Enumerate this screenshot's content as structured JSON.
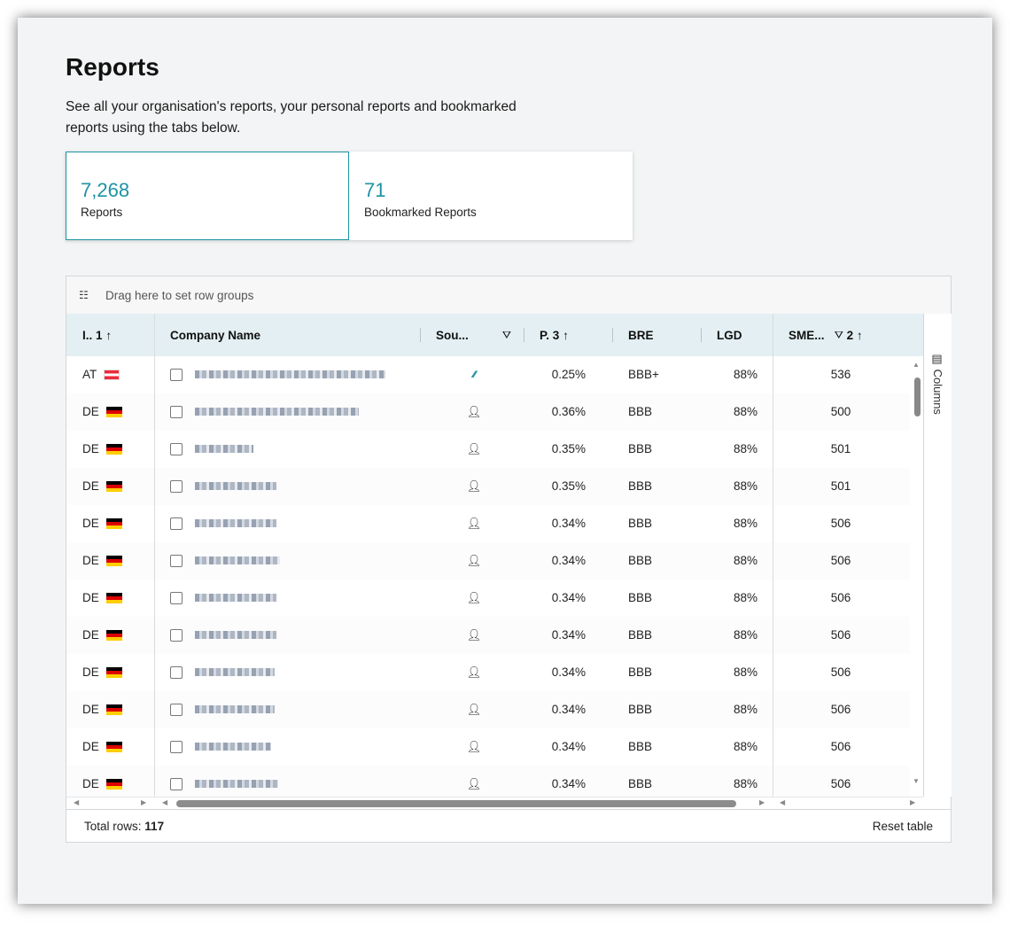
{
  "page": {
    "title": "Reports",
    "subtitle": "See all your organisation's reports, your personal reports and bookmarked reports using the tabs below."
  },
  "tabs": [
    {
      "count": "7,268",
      "label": "Reports",
      "active": true
    },
    {
      "count": "71",
      "label": "Bookmarked Reports",
      "active": false
    }
  ],
  "grid": {
    "group_placeholder": "Drag here to set row groups",
    "columns": {
      "country": {
        "label": "I..",
        "sort_order": "1",
        "sort_icon": "↑"
      },
      "company": {
        "label": "Company Name"
      },
      "source": {
        "label": "Sou...",
        "filter_icon": "⛛"
      },
      "pd": {
        "label": "P.",
        "sort_order": "3",
        "sort_icon": "↑"
      },
      "bre": {
        "label": "BRE"
      },
      "lgd": {
        "label": "LGD"
      },
      "sme": {
        "label": "SME...",
        "filter_icon": "⛛",
        "sort_order": "2",
        "sort_icon": "↑"
      }
    },
    "columns_panel_label": "Columns",
    "rows": [
      {
        "country": "AT",
        "flag": "at",
        "name_blur": 215,
        "source": "wave",
        "pd": "0.25%",
        "bre": "BBB+",
        "lgd": "88%",
        "sme": "536"
      },
      {
        "country": "DE",
        "flag": "de",
        "name_blur": 185,
        "source": "person",
        "pd": "0.36%",
        "bre": "BBB",
        "lgd": "88%",
        "sme": "500"
      },
      {
        "country": "DE",
        "flag": "de",
        "name_blur": 66,
        "source": "person",
        "pd": "0.35%",
        "bre": "BBB",
        "lgd": "88%",
        "sme": "501"
      },
      {
        "country": "DE",
        "flag": "de",
        "name_blur": 92,
        "source": "person",
        "pd": "0.35%",
        "bre": "BBB",
        "lgd": "88%",
        "sme": "501"
      },
      {
        "country": "DE",
        "flag": "de",
        "name_blur": 92,
        "source": "person",
        "pd": "0.34%",
        "bre": "BBB",
        "lgd": "88%",
        "sme": "506"
      },
      {
        "country": "DE",
        "flag": "de",
        "name_blur": 96,
        "source": "person",
        "pd": "0.34%",
        "bre": "BBB",
        "lgd": "88%",
        "sme": "506"
      },
      {
        "country": "DE",
        "flag": "de",
        "name_blur": 92,
        "source": "person",
        "pd": "0.34%",
        "bre": "BBB",
        "lgd": "88%",
        "sme": "506"
      },
      {
        "country": "DE",
        "flag": "de",
        "name_blur": 92,
        "source": "person",
        "pd": "0.34%",
        "bre": "BBB",
        "lgd": "88%",
        "sme": "506"
      },
      {
        "country": "DE",
        "flag": "de",
        "name_blur": 90,
        "source": "person",
        "pd": "0.34%",
        "bre": "BBB",
        "lgd": "88%",
        "sme": "506"
      },
      {
        "country": "DE",
        "flag": "de",
        "name_blur": 90,
        "source": "person",
        "pd": "0.34%",
        "bre": "BBB",
        "lgd": "88%",
        "sme": "506"
      },
      {
        "country": "DE",
        "flag": "de",
        "name_blur": 86,
        "source": "person",
        "pd": "0.34%",
        "bre": "BBB",
        "lgd": "88%",
        "sme": "506"
      },
      {
        "country": "DE",
        "flag": "de",
        "name_blur": 94,
        "source": "person",
        "pd": "0.34%",
        "bre": "BBB",
        "lgd": "88%",
        "sme": "506"
      }
    ],
    "footer": {
      "total_label": "Total rows:",
      "total_value": "117",
      "reset_label": "Reset table"
    }
  },
  "icons": {
    "group": "row-group-icon",
    "columns": "columns-icon",
    "source_person": "person-gear-icon",
    "source_wave": "wave-icon",
    "filter": "filter-icon",
    "sort_up": "arrow-up-icon"
  },
  "colors": {
    "accent": "#1d93a4",
    "header_bg": "#e3eff2",
    "page_bg": "#f3f4f5"
  }
}
